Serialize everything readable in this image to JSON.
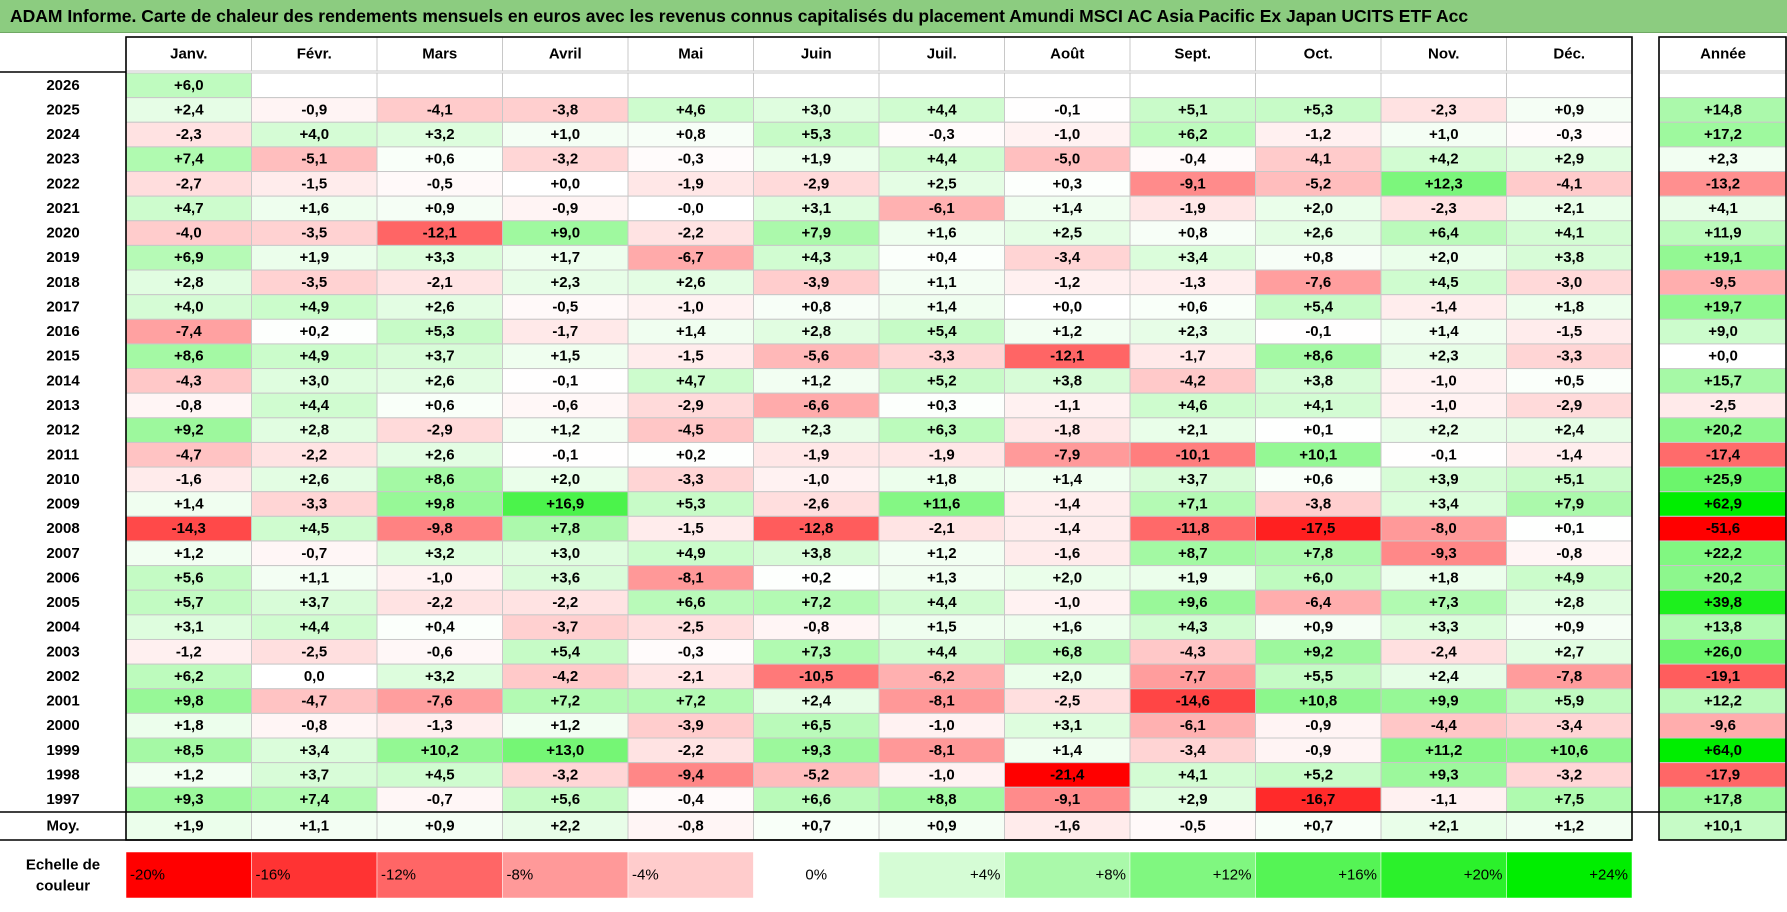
{
  "title": "ADAM Informe. Carte de chaleur des rendements mensuels en euros avec les revenus connus capitalisés du placement Amundi MSCI AC Asia Pacific Ex Japan UCITS ETF Acc",
  "chart_data": {
    "type": "heatmap",
    "title": "ADAM Informe. Carte de chaleur des rendements mensuels en euros avec les revenus connus capitalisés du placement Amundi MSCI AC Asia Pacific Ex Japan UCITS ETF Acc",
    "months": [
      "Janv.",
      "Févr.",
      "Mars",
      "Avril",
      "Mai",
      "Juin",
      "Juil.",
      "Août",
      "Sept.",
      "Oct.",
      "Nov.",
      "Déc."
    ],
    "year_header": "Année",
    "unit": "%",
    "rows": [
      {
        "year": "2026",
        "values": [
          "+6,0",
          "",
          "",
          "",
          "",
          "",
          "",
          "",
          "",
          "",
          "",
          ""
        ],
        "annual": ""
      },
      {
        "year": "2025",
        "values": [
          "+2,4",
          "-0,9",
          "-4,1",
          "-3,8",
          "+4,6",
          "+3,0",
          "+4,4",
          "-0,1",
          "+5,1",
          "+5,3",
          "-2,3",
          "+0,9"
        ],
        "annual": "+14,8"
      },
      {
        "year": "2024",
        "values": [
          "-2,3",
          "+4,0",
          "+3,2",
          "+1,0",
          "+0,8",
          "+5,3",
          "-0,3",
          "-1,0",
          "+6,2",
          "-1,2",
          "+1,0",
          "-0,3"
        ],
        "annual": "+17,2"
      },
      {
        "year": "2023",
        "values": [
          "+7,4",
          "-5,1",
          "+0,6",
          "-3,2",
          "-0,3",
          "+1,9",
          "+4,4",
          "-5,0",
          "-0,4",
          "-4,1",
          "+4,2",
          "+2,9"
        ],
        "annual": "+2,3"
      },
      {
        "year": "2022",
        "values": [
          "-2,7",
          "-1,5",
          "-0,5",
          "+0,0",
          "-1,9",
          "-2,9",
          "+2,5",
          "+0,3",
          "-9,1",
          "-5,2",
          "+12,3",
          "-4,1"
        ],
        "annual": "-13,2"
      },
      {
        "year": "2021",
        "values": [
          "+4,7",
          "+1,6",
          "+0,9",
          "-0,9",
          "-0,0",
          "+3,1",
          "-6,1",
          "+1,4",
          "-1,9",
          "+2,0",
          "-2,3",
          "+2,1"
        ],
        "annual": "+4,1"
      },
      {
        "year": "2020",
        "values": [
          "-4,0",
          "-3,5",
          "-12,1",
          "+9,0",
          "-2,2",
          "+7,9",
          "+1,6",
          "+2,5",
          "+0,8",
          "+2,6",
          "+6,4",
          "+4,1"
        ],
        "annual": "+11,9"
      },
      {
        "year": "2019",
        "values": [
          "+6,9",
          "+1,9",
          "+3,3",
          "+1,7",
          "-6,7",
          "+4,3",
          "+0,4",
          "-3,4",
          "+3,4",
          "+0,8",
          "+2,0",
          "+3,8"
        ],
        "annual": "+19,1"
      },
      {
        "year": "2018",
        "values": [
          "+2,8",
          "-3,5",
          "-2,1",
          "+2,3",
          "+2,6",
          "-3,9",
          "+1,1",
          "-1,2",
          "-1,3",
          "-7,6",
          "+4,5",
          "-3,0"
        ],
        "annual": "-9,5"
      },
      {
        "year": "2017",
        "values": [
          "+4,0",
          "+4,9",
          "+2,6",
          "-0,5",
          "-1,0",
          "+0,8",
          "+1,4",
          "+0,0",
          "+0,6",
          "+5,4",
          "-1,4",
          "+1,8"
        ],
        "annual": "+19,7"
      },
      {
        "year": "2016",
        "values": [
          "-7,4",
          "+0,2",
          "+5,3",
          "-1,7",
          "+1,4",
          "+2,8",
          "+5,4",
          "+1,2",
          "+2,3",
          "-0,1",
          "+1,4",
          "-1,5"
        ],
        "annual": "+9,0"
      },
      {
        "year": "2015",
        "values": [
          "+8,6",
          "+4,9",
          "+3,7",
          "+1,5",
          "-1,5",
          "-5,6",
          "-3,3",
          "-12,1",
          "-1,7",
          "+8,6",
          "+2,3",
          "-3,3"
        ],
        "annual": "+0,0"
      },
      {
        "year": "2014",
        "values": [
          "-4,3",
          "+3,0",
          "+2,6",
          "-0,1",
          "+4,7",
          "+1,2",
          "+5,2",
          "+3,8",
          "-4,2",
          "+3,8",
          "-1,0",
          "+0,5"
        ],
        "annual": "+15,7"
      },
      {
        "year": "2013",
        "values": [
          "-0,8",
          "+4,4",
          "+0,6",
          "-0,6",
          "-2,9",
          "-6,6",
          "+0,3",
          "-1,1",
          "+4,6",
          "+4,1",
          "-1,0",
          "-2,9"
        ],
        "annual": "-2,5"
      },
      {
        "year": "2012",
        "values": [
          "+9,2",
          "+2,8",
          "-2,9",
          "+1,2",
          "-4,5",
          "+2,3",
          "+6,3",
          "-1,8",
          "+2,1",
          "+0,1",
          "+2,2",
          "+2,4"
        ],
        "annual": "+20,2"
      },
      {
        "year": "2011",
        "values": [
          "-4,7",
          "-2,2",
          "+2,6",
          "-0,1",
          "+0,2",
          "-1,9",
          "-1,9",
          "-7,9",
          "-10,1",
          "+10,1",
          "-0,1",
          "-1,4"
        ],
        "annual": "-17,4"
      },
      {
        "year": "2010",
        "values": [
          "-1,6",
          "+2,6",
          "+8,6",
          "+2,0",
          "-3,3",
          "-1,0",
          "+1,8",
          "+1,4",
          "+3,7",
          "+0,6",
          "+3,9",
          "+5,1"
        ],
        "annual": "+25,9"
      },
      {
        "year": "2009",
        "values": [
          "+1,4",
          "-3,3",
          "+9,8",
          "+16,9",
          "+5,3",
          "-2,6",
          "+11,6",
          "-1,4",
          "+7,1",
          "-3,8",
          "+3,4",
          "+7,9"
        ],
        "annual": "+62,9"
      },
      {
        "year": "2008",
        "values": [
          "-14,3",
          "+4,5",
          "-9,8",
          "+7,8",
          "-1,5",
          "-12,8",
          "-2,1",
          "-1,4",
          "-11,8",
          "-17,5",
          "-8,0",
          "+0,1"
        ],
        "annual": "-51,6"
      },
      {
        "year": "2007",
        "values": [
          "+1,2",
          "-0,7",
          "+3,2",
          "+3,0",
          "+4,9",
          "+3,8",
          "+1,2",
          "-1,6",
          "+8,7",
          "+7,8",
          "-9,3",
          "-0,8"
        ],
        "annual": "+22,2"
      },
      {
        "year": "2006",
        "values": [
          "+5,6",
          "+1,1",
          "-1,0",
          "+3,6",
          "-8,1",
          "+0,2",
          "+1,3",
          "+2,0",
          "+1,9",
          "+6,0",
          "+1,8",
          "+4,9"
        ],
        "annual": "+20,2"
      },
      {
        "year": "2005",
        "values": [
          "+5,7",
          "+3,7",
          "-2,2",
          "-2,2",
          "+6,6",
          "+7,2",
          "+4,4",
          "-1,0",
          "+9,6",
          "-6,4",
          "+7,3",
          "+2,8"
        ],
        "annual": "+39,8"
      },
      {
        "year": "2004",
        "values": [
          "+3,1",
          "+4,4",
          "+0,4",
          "-3,7",
          "-2,5",
          "-0,8",
          "+1,5",
          "+1,6",
          "+4,3",
          "+0,9",
          "+3,3",
          "+0,9"
        ],
        "annual": "+13,8"
      },
      {
        "year": "2003",
        "values": [
          "-1,2",
          "-2,5",
          "-0,6",
          "+5,4",
          "-0,3",
          "+7,3",
          "+4,4",
          "+6,8",
          "-4,3",
          "+9,2",
          "-2,4",
          "+2,7"
        ],
        "annual": "+26,0"
      },
      {
        "year": "2002",
        "values": [
          "+6,2",
          "0,0",
          "+3,2",
          "-4,2",
          "-2,1",
          "-10,5",
          "-6,2",
          "+2,0",
          "-7,7",
          "+5,5",
          "+2,4",
          "-7,8"
        ],
        "annual": "-19,1"
      },
      {
        "year": "2001",
        "values": [
          "+9,8",
          "-4,7",
          "-7,6",
          "+7,2",
          "+7,2",
          "+2,4",
          "-8,1",
          "-2,5",
          "-14,6",
          "+10,8",
          "+9,9",
          "+5,9"
        ],
        "annual": "+12,2"
      },
      {
        "year": "2000",
        "values": [
          "+1,8",
          "-0,8",
          "-1,3",
          "+1,2",
          "-3,9",
          "+6,5",
          "-1,0",
          "+3,1",
          "-6,1",
          "-0,9",
          "-4,4",
          "-3,4"
        ],
        "annual": "-9,6"
      },
      {
        "year": "1999",
        "values": [
          "+8,5",
          "+3,4",
          "+10,2",
          "+13,0",
          "-2,2",
          "+9,3",
          "-8,1",
          "+1,4",
          "-3,4",
          "-0,9",
          "+11,2",
          "+10,6"
        ],
        "annual": "+64,0"
      },
      {
        "year": "1998",
        "values": [
          "+1,2",
          "+3,7",
          "+4,5",
          "-3,2",
          "-9,4",
          "-5,2",
          "-1,0",
          "-21,4",
          "+4,1",
          "+5,2",
          "+9,3",
          "-3,2"
        ],
        "annual": "-17,9"
      },
      {
        "year": "1997",
        "values": [
          "+9,3",
          "+7,4",
          "-0,7",
          "+5,6",
          "-0,4",
          "+6,6",
          "+8,8",
          "-9,1",
          "+2,9",
          "-16,7",
          "-1,1",
          "+7,5"
        ],
        "annual": "+17,8"
      }
    ],
    "average": {
      "label": "Moy.",
      "values": [
        "+1,9",
        "+1,1",
        "+0,9",
        "+2,2",
        "-0,8",
        "+0,7",
        "+0,9",
        "-1,6",
        "-0,5",
        "+0,7",
        "+2,1",
        "+1,2"
      ],
      "annual": "+10,1"
    },
    "scale": {
      "label_lines": [
        "Echelle de",
        "couleur"
      ],
      "stops": [
        "-20%",
        "-16%",
        "-12%",
        "-8%",
        "-4%",
        "0%",
        "+4%",
        "+8%",
        "+12%",
        "+16%",
        "+20%",
        "+24%"
      ],
      "stop_values": [
        -20,
        -16,
        -12,
        -8,
        -4,
        0,
        4,
        8,
        12,
        16,
        20,
        24
      ]
    },
    "colors": {
      "negative_max": "#ff0000",
      "neutral": "#ffffff",
      "positive_max": "#00ee00",
      "title_bar": "#8ccc80",
      "grid": "#c8c8c8"
    }
  }
}
